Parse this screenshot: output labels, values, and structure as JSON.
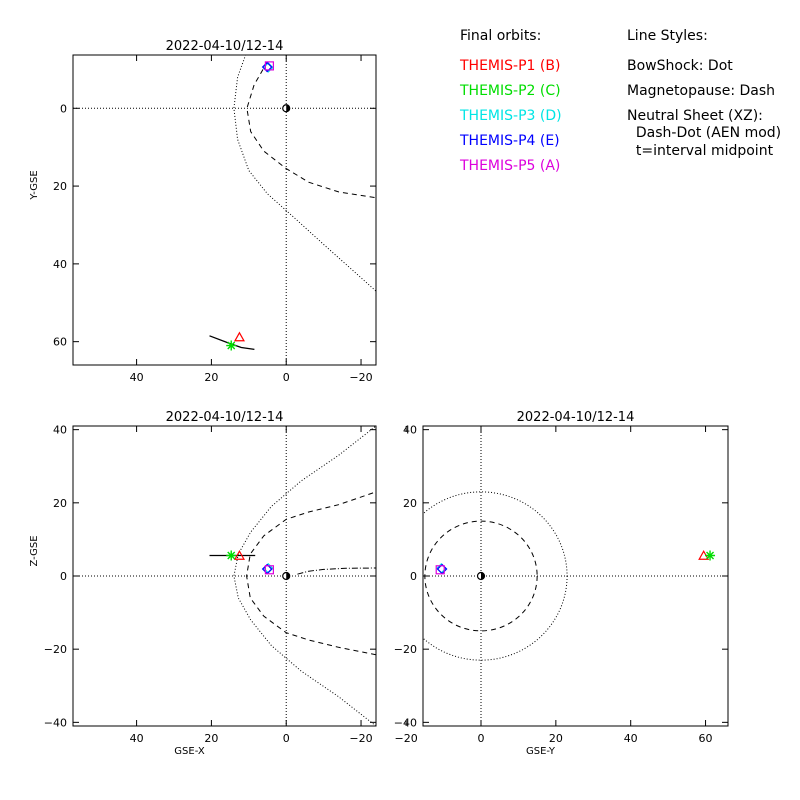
{
  "legend": {
    "title": "Final orbits:",
    "items": [
      {
        "label": "THEMIS-P1 (B)",
        "color": "#ff0000"
      },
      {
        "label": "THEMIS-P2 (C)",
        "color": "#00dd00"
      },
      {
        "label": "THEMIS-P3 (D)",
        "color": "#00e5e5"
      },
      {
        "label": "THEMIS-P4 (E)",
        "color": "#0000ff"
      },
      {
        "label": "THEMIS-P5 (A)",
        "color": "#dd00dd"
      }
    ]
  },
  "line_styles": {
    "title": "Line Styles:",
    "lines": [
      "BowShock: Dot",
      "Magnetopause: Dash",
      "Neutral Sheet (XZ):",
      "  Dash-Dot (AEN mod)",
      "  t=interval midpoint"
    ]
  },
  "chart_data": [
    {
      "type": "line",
      "title": "2022-04-10/12-14",
      "xlabel": "",
      "ylabel": "Y-GSE",
      "xlim": [
        57,
        -24
      ],
      "ylim": [
        -13.7,
        66
      ],
      "xticks": [
        40,
        20,
        0,
        -20
      ],
      "yticks": [
        0,
        20,
        40,
        60
      ],
      "yaxis_inverted": true,
      "bow_shock": [
        [
          14,
          0
        ],
        [
          12,
          -12
        ],
        [
          6,
          -22
        ],
        [
          -4,
          -30
        ],
        [
          -14,
          -37
        ],
        [
          -24,
          -41
        ]
      ],
      "bow_shock_plotted": [
        [
          14,
          0
        ],
        [
          12.3,
          -10
        ],
        [
          7,
          -20
        ],
        [
          -5,
          -30
        ],
        [
          -15,
          -35
        ],
        [
          -24,
          -48
        ]
      ],
      "magnetopause": [
        [
          11,
          0
        ],
        [
          8.6,
          -10
        ],
        [
          1,
          -19
        ],
        [
          -10,
          -21
        ],
        [
          -24,
          -23
        ]
      ],
      "earth": [
        0,
        0
      ],
      "probes": [
        {
          "label": "P1",
          "x": 12.5,
          "y": 59,
          "marker": "triangle",
          "color": "#ff0000"
        },
        {
          "label": "P2",
          "x": 14.7,
          "y": 61,
          "marker": "asterisk",
          "color": "#00dd00"
        },
        {
          "label": "P3",
          "x": 4.8,
          "y": -10.5,
          "marker": "diamond",
          "color": "#00e5e5"
        },
        {
          "label": "P4",
          "x": 5.1,
          "y": -10.6,
          "marker": "diamond",
          "color": "#0000ff"
        },
        {
          "label": "P5",
          "x": 4.5,
          "y": -10.9,
          "marker": "square",
          "color": "#dd00dd"
        }
      ],
      "orbit_track": [
        [
          8.5,
          62
        ],
        [
          12,
          61.5
        ],
        [
          15,
          60.5
        ],
        [
          20.5,
          58.5
        ]
      ]
    },
    {
      "type": "line",
      "title": "2022-04-10/12-14",
      "xlabel": "GSE-X",
      "ylabel": "Z-GSE",
      "xlim": [
        57,
        -24
      ],
      "ylim": [
        -41,
        41
      ],
      "xticks": [
        40,
        20,
        0,
        -20
      ],
      "yticks": [
        40,
        20,
        0,
        -20,
        -40
      ],
      "bow_shock": [
        [
          14,
          0
        ],
        [
          12,
          12
        ],
        [
          6,
          22
        ],
        [
          -4,
          30
        ],
        [
          -14,
          36
        ],
        [
          -24,
          41
        ]
      ],
      "magnetopause": [
        [
          11,
          0
        ],
        [
          8.6,
          10
        ],
        [
          1,
          15.5
        ],
        [
          -10,
          19
        ],
        [
          -24,
          23
        ]
      ],
      "neutral_sheet": [
        [
          -3,
          0.5
        ],
        [
          -8,
          1.5
        ],
        [
          -14,
          2
        ],
        [
          -24,
          2.2
        ]
      ],
      "earth": [
        0,
        0
      ],
      "probes": [
        {
          "label": "P1",
          "x": 12.5,
          "y": 5.4,
          "marker": "triangle",
          "color": "#ff0000"
        },
        {
          "label": "P2",
          "x": 14.7,
          "y": 5.6,
          "marker": "asterisk",
          "color": "#00dd00"
        },
        {
          "label": "P3",
          "x": 4.8,
          "y": 2.1,
          "marker": "diamond",
          "color": "#00e5e5"
        },
        {
          "label": "P4",
          "x": 5.1,
          "y": 1.9,
          "marker": "diamond",
          "color": "#0000ff"
        },
        {
          "label": "P5",
          "x": 4.5,
          "y": 1.7,
          "marker": "square",
          "color": "#dd00dd"
        }
      ],
      "orbit_track": [
        [
          8.3,
          5.6
        ],
        [
          20.5,
          5.6
        ]
      ]
    },
    {
      "type": "line",
      "title": "2022-04-10/12-14",
      "xlabel": "GSE-Y",
      "ylabel": "",
      "xlim": [
        -15.5,
        66
      ],
      "ylim": [
        -41,
        41
      ],
      "xticks": [
        -20,
        0,
        20,
        40,
        60
      ],
      "yticks": [
        40,
        20,
        0,
        -20,
        -40
      ],
      "bow_shock_radius": 23,
      "magnetopause_radius": 15,
      "earth": [
        0,
        0
      ],
      "probes": [
        {
          "label": "P1",
          "x": 59.5,
          "y": 5.4,
          "marker": "triangle",
          "color": "#ff0000"
        },
        {
          "label": "P2",
          "x": 61.2,
          "y": 5.6,
          "marker": "asterisk",
          "color": "#00dd00"
        },
        {
          "label": "P3",
          "x": -10.6,
          "y": 2.1,
          "marker": "diamond",
          "color": "#00e5e5"
        },
        {
          "label": "P4",
          "x": -10.4,
          "y": 1.9,
          "marker": "diamond",
          "color": "#0000ff"
        },
        {
          "label": "P5",
          "x": -10.9,
          "y": 1.7,
          "marker": "square",
          "color": "#dd00dd"
        }
      ]
    }
  ]
}
